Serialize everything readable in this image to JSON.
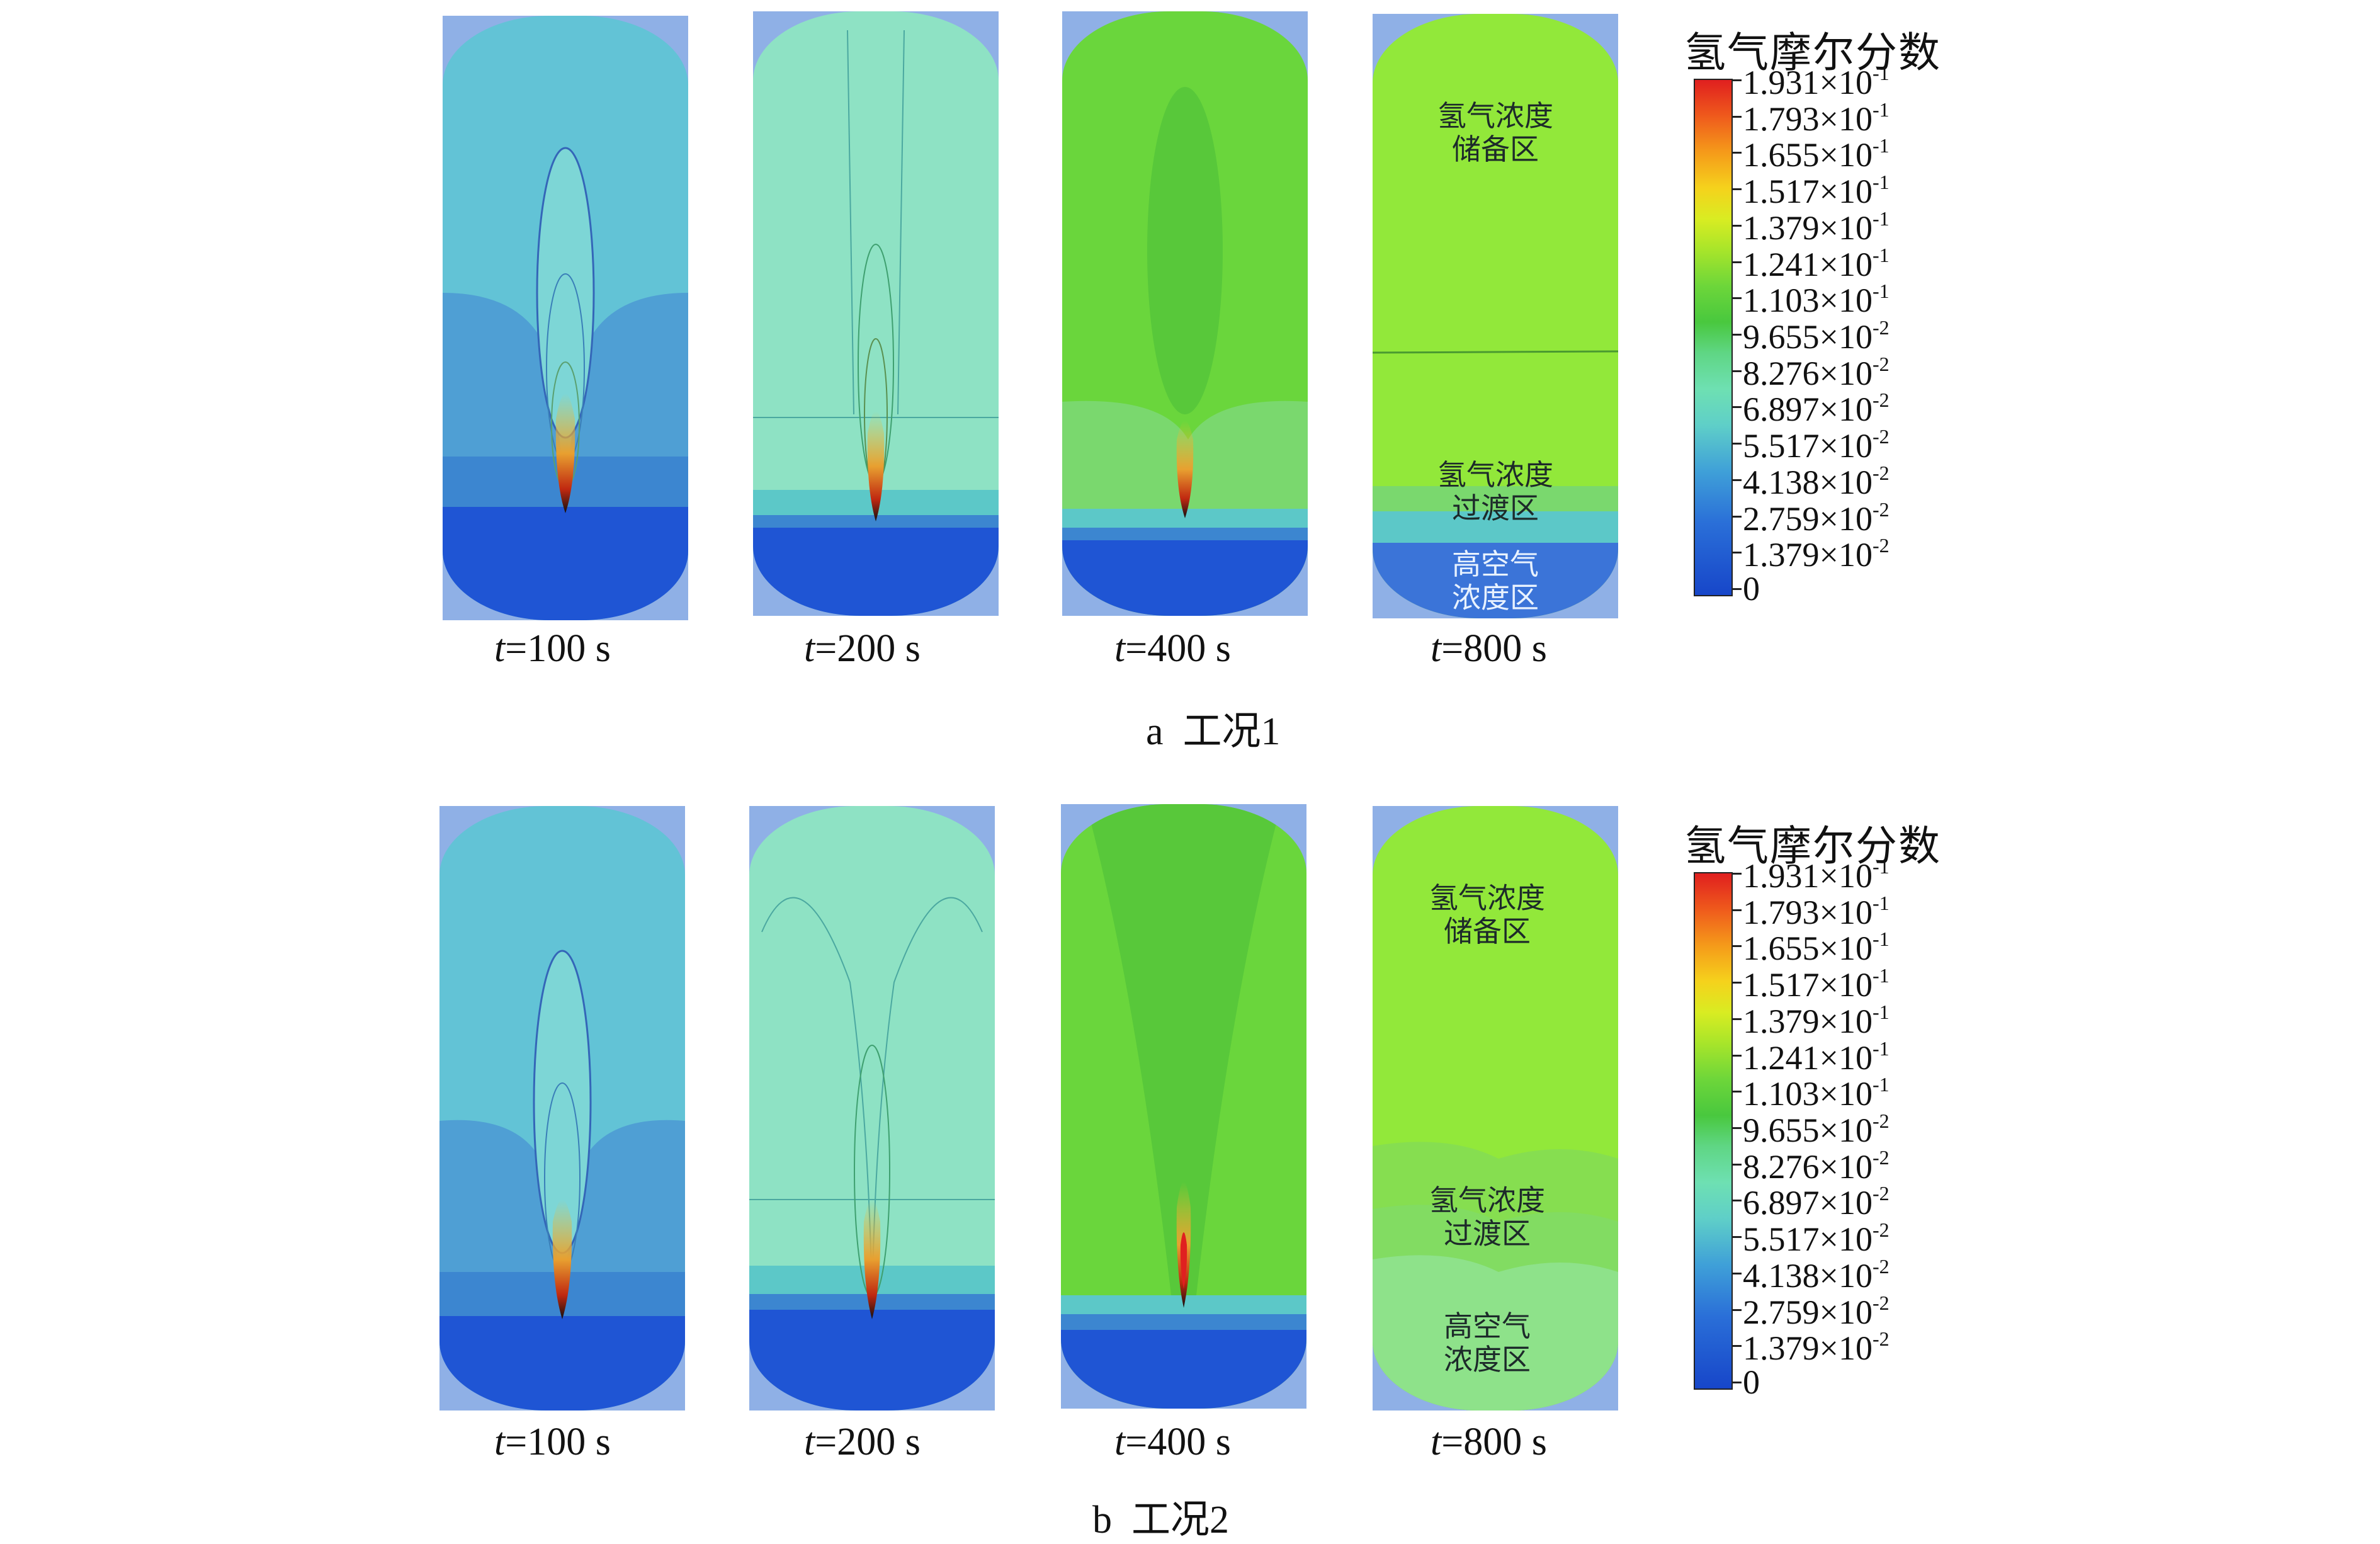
{
  "legend": {
    "title": "氢气摩尔分数",
    "ticks": [
      {
        "mant": "1.931",
        "exp": "-1"
      },
      {
        "mant": "1.793",
        "exp": "-1"
      },
      {
        "mant": "1.655",
        "exp": "-1"
      },
      {
        "mant": "1.517",
        "exp": "-1"
      },
      {
        "mant": "1.379",
        "exp": "-1"
      },
      {
        "mant": "1.241",
        "exp": "-1"
      },
      {
        "mant": "1.103",
        "exp": "-1"
      },
      {
        "mant": "9.655",
        "exp": "-2"
      },
      {
        "mant": "8.276",
        "exp": "-2"
      },
      {
        "mant": "6.897",
        "exp": "-2"
      },
      {
        "mant": "5.517",
        "exp": "-2"
      },
      {
        "mant": "4.138",
        "exp": "-2"
      },
      {
        "mant": "2.759",
        "exp": "-2"
      },
      {
        "mant": "1.379",
        "exp": "-2"
      },
      {
        "mant": "0",
        "exp": ""
      }
    ],
    "times_sign": "×10"
  },
  "rows": [
    {
      "caption": "a  工况1",
      "times": [
        "=100 s",
        "=200 s",
        "=400 s",
        "=800 s"
      ],
      "time_var": "t",
      "zones": {
        "storage": "氢气浓度\n储备区",
        "transition": "氢气浓度\n过渡区",
        "air": "高空气\n浓度区"
      }
    },
    {
      "caption": "b  工况2",
      "times": [
        "=100 s",
        "=200 s",
        "=400 s",
        "=800 s"
      ],
      "time_var": "t",
      "zones": {
        "storage": "氢气浓度\n储备区",
        "transition": "氢气浓度\n过渡区",
        "air": "高空气\n浓度区"
      }
    }
  ],
  "colors": {
    "bg_corner": "#8fb0e6",
    "deep_blue": "#1e50d2",
    "mid_blue": "#3a82cc",
    "cyan": "#69cbd9",
    "light_cyan": "#8fe3c6",
    "green": "#66d43b",
    "light_green": "#8ee63a",
    "red": "#e02020"
  }
}
